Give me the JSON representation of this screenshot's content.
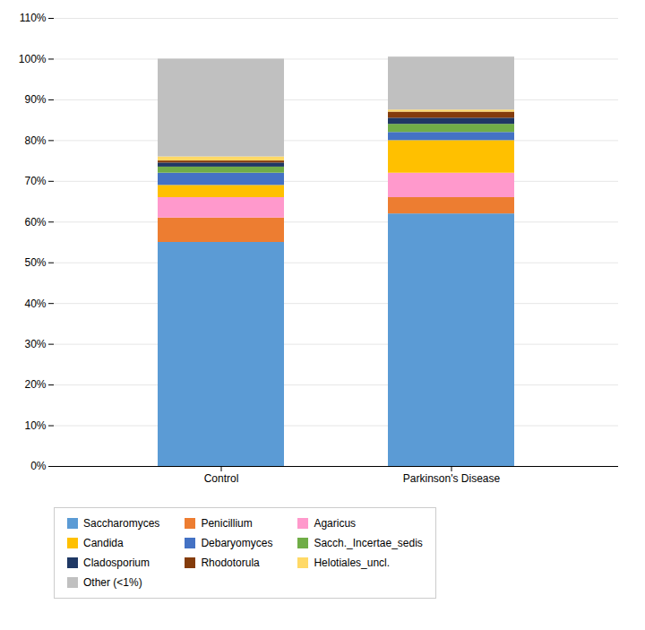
{
  "chart_data": {
    "type": "bar",
    "stacked": true,
    "categories": [
      "Control",
      "Parkinson's Disease"
    ],
    "series": [
      {
        "name": "Saccharomyces",
        "color": "#5B9BD5",
        "values": [
          55.0,
          62.0
        ]
      },
      {
        "name": "Penicillium",
        "color": "#ED7D31",
        "values": [
          6.0,
          4.0
        ]
      },
      {
        "name": "Agaricus",
        "color": "#FF99CC",
        "values": [
          5.0,
          6.0
        ]
      },
      {
        "name": "Candida",
        "color": "#FFC000",
        "values": [
          3.0,
          8.0
        ]
      },
      {
        "name": "Debaryomyces",
        "color": "#4472C4",
        "values": [
          3.0,
          2.0
        ]
      },
      {
        "name": "Sacch._Incertae_sedis",
        "color": "#70AD47",
        "values": [
          1.5,
          2.0
        ]
      },
      {
        "name": "Cladosporium",
        "color": "#1F3864",
        "values": [
          1.0,
          1.5
        ]
      },
      {
        "name": "Rhodotorula",
        "color": "#843C0C",
        "values": [
          0.5,
          1.5
        ]
      },
      {
        "name": "Helotiales_uncl.",
        "color": "#FFD966",
        "values": [
          1.0,
          0.5
        ]
      },
      {
        "name": "Other (<1%)",
        "color": "#C0C0C0",
        "values": [
          24.0,
          13.0
        ]
      }
    ],
    "ylim": [
      0,
      110
    ],
    "yticks": [
      {
        "value": 0,
        "label": "0%"
      },
      {
        "value": 10,
        "label": "10%"
      },
      {
        "value": 20,
        "label": "20%"
      },
      {
        "value": 30,
        "label": "30%"
      },
      {
        "value": 40,
        "label": "40%"
      },
      {
        "value": 50,
        "label": "50%"
      },
      {
        "value": 60,
        "label": "60%"
      },
      {
        "value": 70,
        "label": "70%"
      },
      {
        "value": 80,
        "label": "80%"
      },
      {
        "value": 90,
        "label": "90%"
      },
      {
        "value": 100,
        "label": "100%"
      },
      {
        "value": 110,
        "label": "110%"
      }
    ],
    "grid": true,
    "legend": "bottom"
  }
}
